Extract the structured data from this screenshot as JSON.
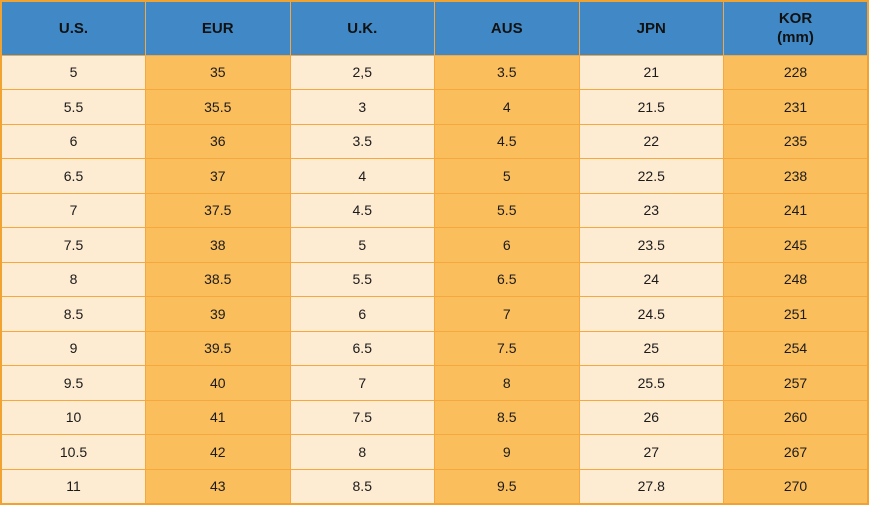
{
  "colors": {
    "header_bg": "#4189C6",
    "col_light": "#FDEBD2",
    "col_orange": "#FBBE5D",
    "grid_border": "#F6A83E",
    "outer_border": "#F0A330"
  },
  "chart_data": {
    "type": "table",
    "columns": [
      "U.S.",
      "EUR",
      "U.K.",
      "AUS",
      "JPN",
      "KOR\n(mm)"
    ],
    "column_keys": [
      "us",
      "eur",
      "uk",
      "aus",
      "jpn",
      "kor-mm"
    ],
    "rows": [
      [
        "5",
        "35",
        "2,5",
        "3.5",
        "21",
        "228"
      ],
      [
        "5.5",
        "35.5",
        "3",
        "4",
        "21.5",
        "231"
      ],
      [
        "6",
        "36",
        "3.5",
        "4.5",
        "22",
        "235"
      ],
      [
        "6.5",
        "37",
        "4",
        "5",
        "22.5",
        "238"
      ],
      [
        "7",
        "37.5",
        "4.5",
        "5.5",
        "23",
        "241"
      ],
      [
        "7.5",
        "38",
        "5",
        "6",
        "23.5",
        "245"
      ],
      [
        "8",
        "38.5",
        "5.5",
        "6.5",
        "24",
        "248"
      ],
      [
        "8.5",
        "39",
        "6",
        "7",
        "24.5",
        "251"
      ],
      [
        "9",
        "39.5",
        "6.5",
        "7.5",
        "25",
        "254"
      ],
      [
        "9.5",
        "40",
        "7",
        "8",
        "25.5",
        "257"
      ],
      [
        "10",
        "41",
        "7.5",
        "8.5",
        "26",
        "260"
      ],
      [
        "10.5",
        "42",
        "8",
        "9",
        "27",
        "267"
      ],
      [
        "11",
        "43",
        "8.5",
        "9.5",
        "27.8",
        "270"
      ]
    ]
  }
}
